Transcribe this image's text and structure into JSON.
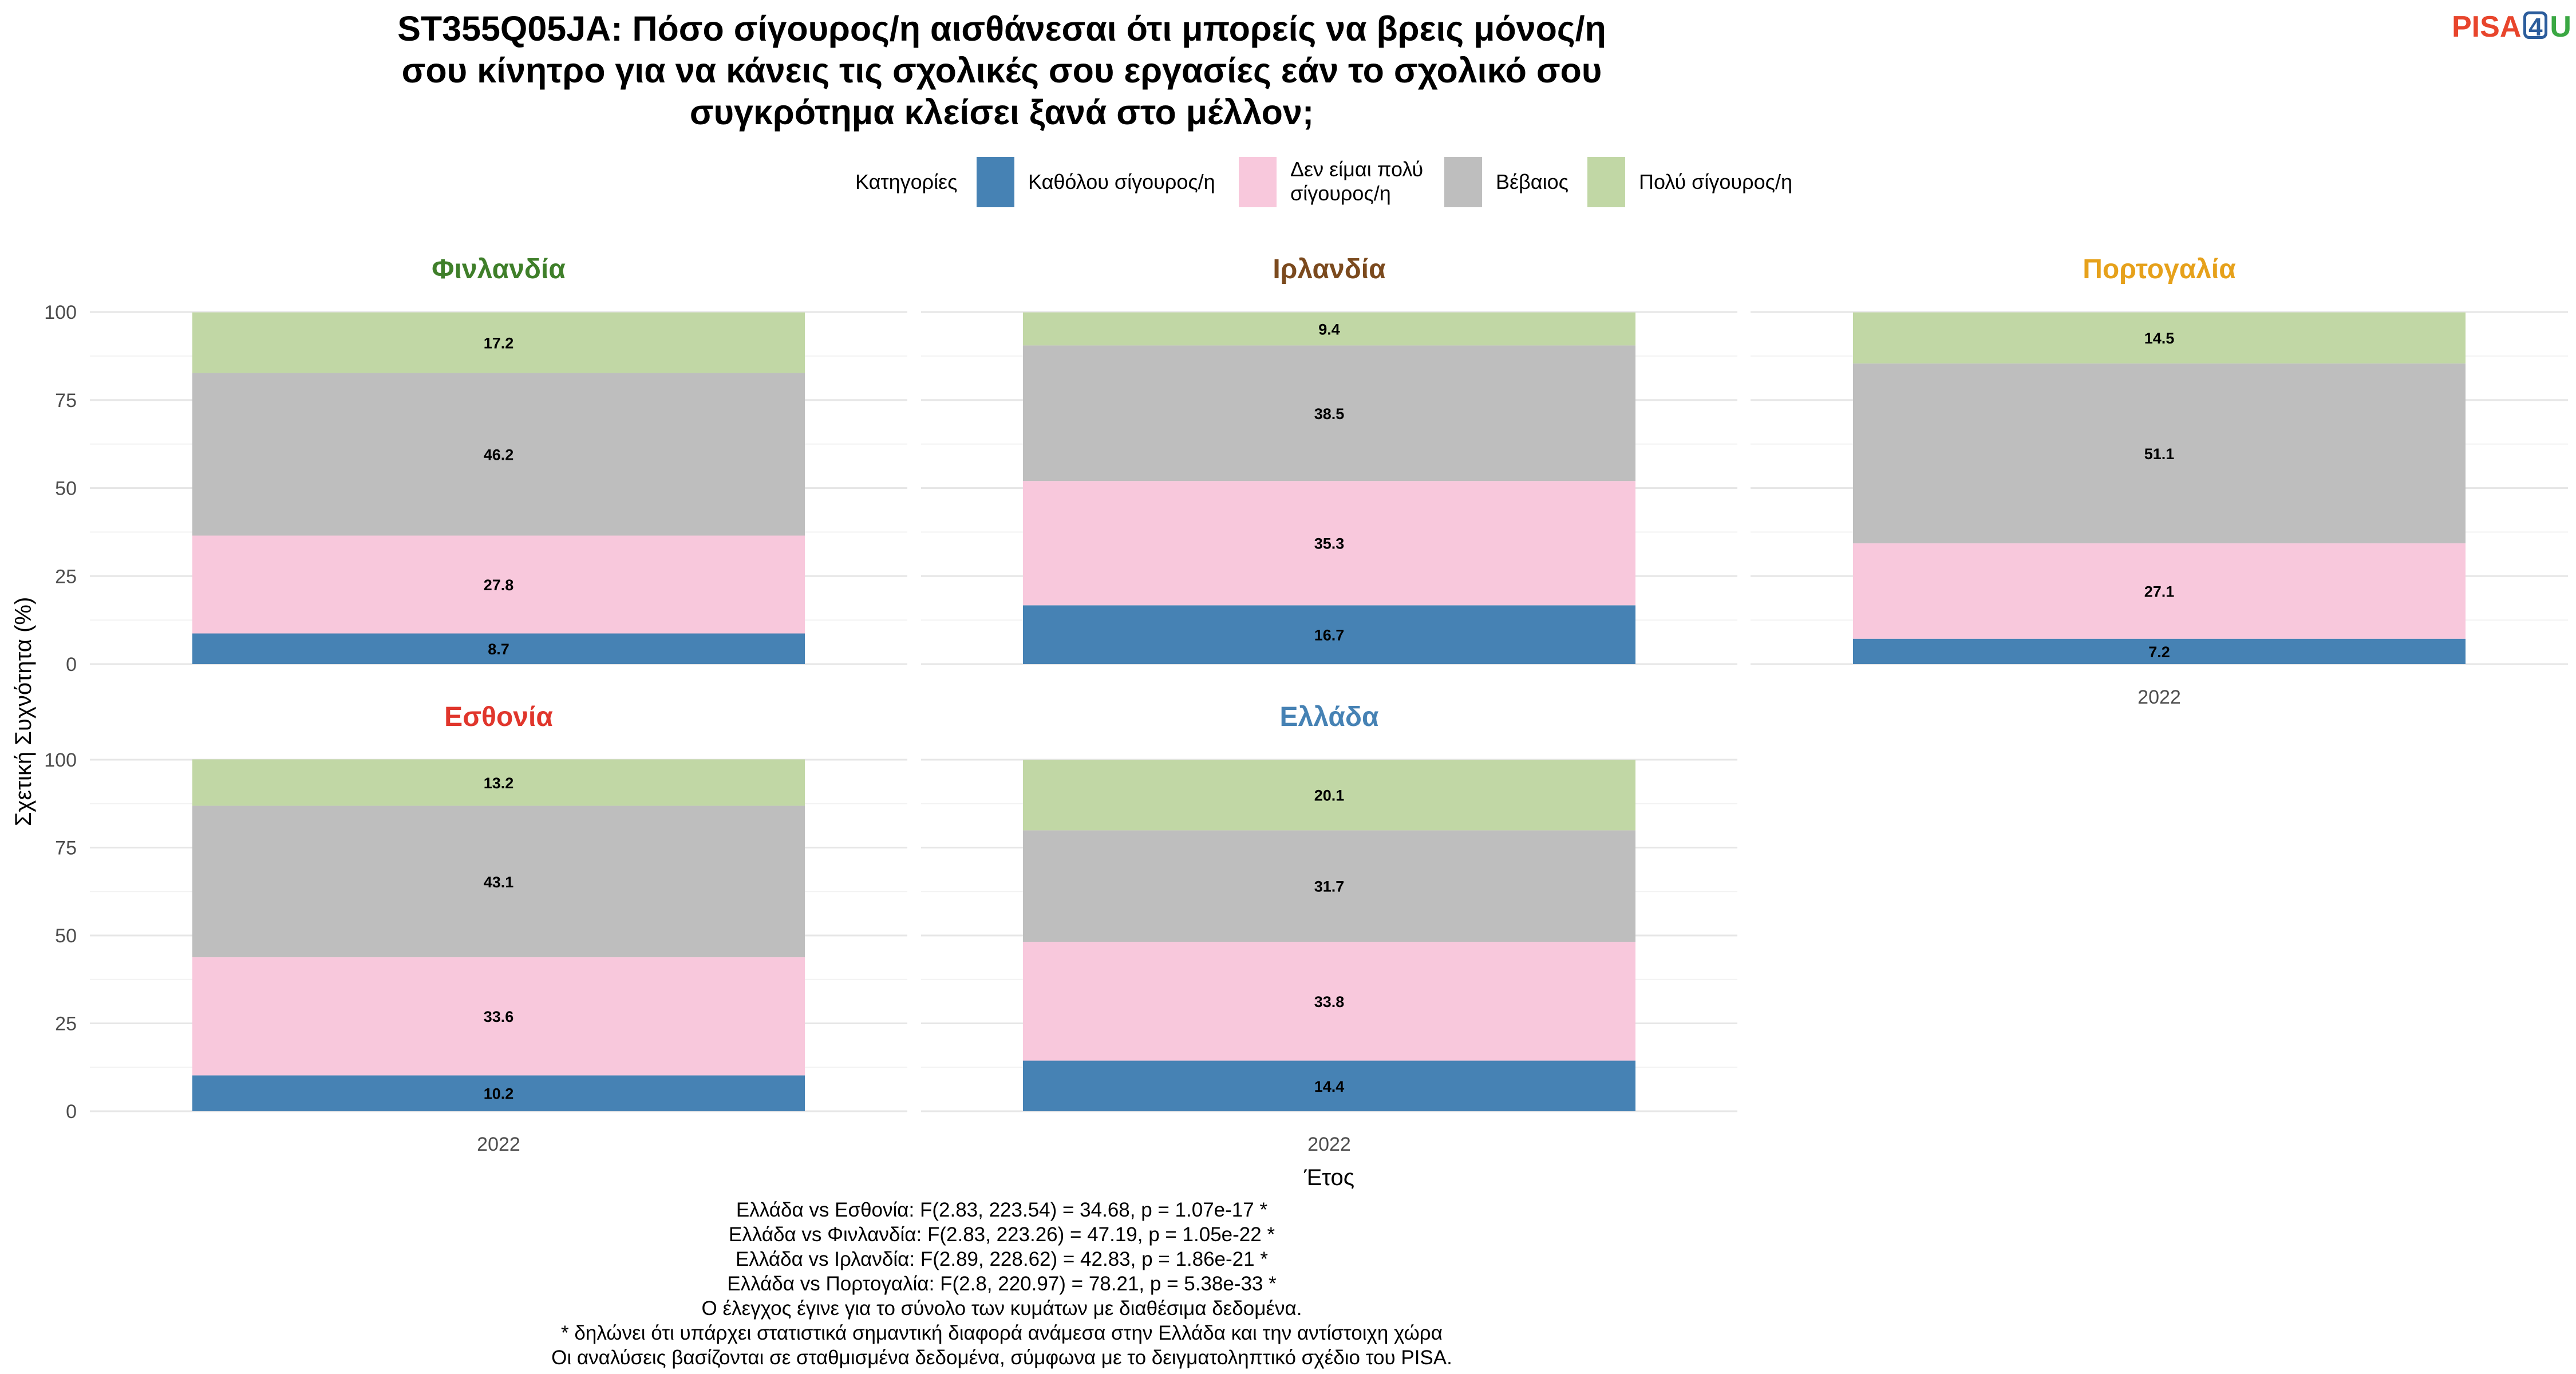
{
  "title_lines": [
    "ST355Q05JA: Πόσο σίγουρος/η αισθάνεσαι ότι μπορείς να βρεις μόνος/η",
    "σου κίνητρο για να κάνεις τις σχολικές σου εργασίες εάν το σχολικό σου",
    "συγκρότημα κλείσει ξανά στο μέλλον;"
  ],
  "logo": {
    "part1": "PISA",
    "part2": "4",
    "part3": "U",
    "colors": [
      "#e8452c",
      "#2c5d9c",
      "#3aa843"
    ]
  },
  "legend": {
    "title": "Κατηγορίες",
    "items": [
      {
        "label_lines": [
          "Καθόλου σίγουρος/η"
        ],
        "color": "#4682b4"
      },
      {
        "label_lines": [
          "Δεν είμαι πολύ",
          "σίγουρος/η"
        ],
        "color": "#f8c8dc"
      },
      {
        "label_lines": [
          "Βέβαιος"
        ],
        "color": "#bebebe"
      },
      {
        "label_lines": [
          "Πολύ σίγουρος/η"
        ],
        "color": "#c1d7a5"
      }
    ]
  },
  "chart_data": {
    "type": "bar",
    "stacked": true,
    "xlabel": "Έτος",
    "ylabel": "Σχετική Συχνότητα (%)",
    "ylim": [
      0,
      100
    ],
    "yticks": [
      0,
      25,
      50,
      75,
      100
    ],
    "categories": [
      "2022"
    ],
    "grid": true,
    "legend_position": "top",
    "series_names": [
      "Καθόλου σίγουρος/η",
      "Δεν είμαι πολύ σίγουρος/η",
      "Βέβαιος",
      "Πολύ σίγουρος/η"
    ],
    "panels": [
      {
        "name": "Φινλανδία",
        "title_color": "#3f7f2a",
        "values": [
          8.7,
          27.8,
          46.2,
          17.2
        ]
      },
      {
        "name": "Ιρλανδία",
        "title_color": "#7b4a1e",
        "values": [
          16.7,
          35.3,
          38.5,
          9.4
        ]
      },
      {
        "name": "Πορτογαλία",
        "title_color": "#e6a11b",
        "values": [
          7.2,
          27.1,
          51.1,
          14.5
        ]
      },
      {
        "name": "Εσθονία",
        "title_color": "#e0362c",
        "values": [
          10.2,
          33.6,
          43.1,
          13.2
        ]
      },
      {
        "name": "Ελλάδα",
        "title_color": "#4682b4",
        "values": [
          14.4,
          33.8,
          31.7,
          20.1
        ]
      }
    ]
  },
  "notes": [
    "Ελλάδα vs Εσθονία: F(2.83, 223.54) = 34.68, p = 1.07e-17 *",
    "Ελλάδα vs Φινλανδία: F(2.83, 223.26) = 47.19, p = 1.05e-22 *",
    "Ελλάδα vs Ιρλανδία: F(2.89, 228.62) = 42.83, p = 1.86e-21 *",
    "Ελλάδα vs Πορτογαλία: F(2.8, 220.97) = 78.21, p = 5.38e-33 *",
    "Ο έλεγχος έγινε για το σύνολο των κυμάτων με διαθέσιμα δεδομένα.",
    "* δηλώνει ότι υπάρχει στατιστικά σημαντική διαφορά ανάμεσα στην Ελλάδα και την αντίστοιχη χώρα",
    "Οι αναλύσεις βασίζονται σε σταθμισμένα δεδομένα, σύμφωνα με το δειγματοληπτικό σχέδιο του PISA."
  ]
}
